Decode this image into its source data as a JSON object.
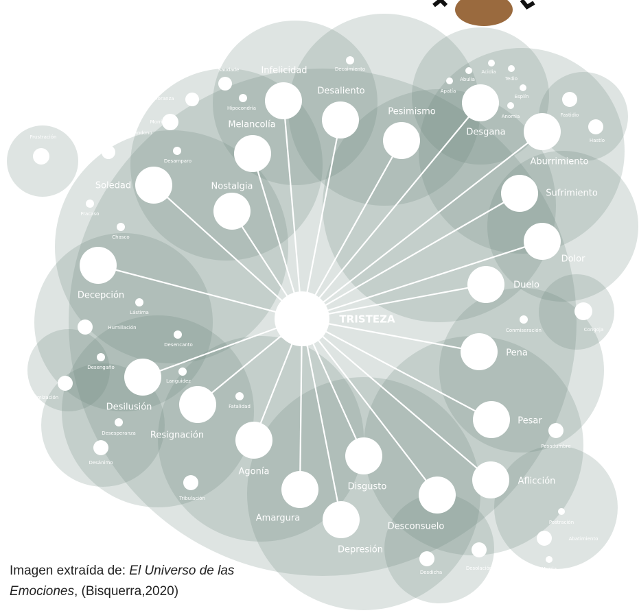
{
  "center": {
    "label": "TRISTEZA"
  },
  "nodes": [
    {
      "label": "Infelicidad"
    },
    {
      "label": "Desaliento"
    },
    {
      "label": "Pesimismo"
    },
    {
      "label": "Desgana"
    },
    {
      "label": "Aburrimiento"
    },
    {
      "label": "Sufrimiento"
    },
    {
      "label": "Dolor"
    },
    {
      "label": "Duelo"
    },
    {
      "label": "Pena"
    },
    {
      "label": "Pesar"
    },
    {
      "label": "Aflicción"
    },
    {
      "label": "Desconsuelo"
    },
    {
      "label": "Depresión"
    },
    {
      "label": "Disgusto"
    },
    {
      "label": "Amargura"
    },
    {
      "label": "Agonía"
    },
    {
      "label": "Resignación"
    },
    {
      "label": "Desilusión"
    },
    {
      "label": "Decepción"
    },
    {
      "label": "Soledad"
    },
    {
      "label": "Nostalgia"
    },
    {
      "label": "Melancolía"
    },
    {
      "label": "Frustración"
    },
    {
      "label": "Abandono"
    },
    {
      "label": "Morriña"
    },
    {
      "label": "Añoranza"
    },
    {
      "label": "Saudade"
    },
    {
      "label": "Hipocondría"
    },
    {
      "label": "Desamparo"
    },
    {
      "label": "Decaimiento"
    },
    {
      "label": "Apatía"
    },
    {
      "label": "Abulia"
    },
    {
      "label": "Acidia"
    },
    {
      "label": "Tedio"
    },
    {
      "label": "Esplín"
    },
    {
      "label": "Anomia"
    },
    {
      "label": "Fastidio"
    },
    {
      "label": "Hastío"
    },
    {
      "label": "Fracaso"
    },
    {
      "label": "Chasco"
    },
    {
      "label": "Lástima"
    },
    {
      "label": "Humillación"
    },
    {
      "label": "Desencanto"
    },
    {
      "label": "Desengaño"
    },
    {
      "label": "Languidez"
    },
    {
      "label": "Fatalidad"
    },
    {
      "label": "Desesperanza"
    },
    {
      "label": "Victimización"
    },
    {
      "label": "Desánimo"
    },
    {
      "label": "Tribulación"
    },
    {
      "label": "Conmiseración"
    },
    {
      "label": "Congoja"
    },
    {
      "label": "Pesadumbre"
    },
    {
      "label": "Postración"
    },
    {
      "label": "Abatimiento"
    },
    {
      "label": "Murria"
    },
    {
      "label": "Desolación"
    },
    {
      "label": "Desdicha"
    }
  ],
  "caption": {
    "prefix": "Imagen  extraída de: ",
    "title": "El Universo de las Emociones",
    "suffix": ", (Bisquerra,2020)"
  }
}
